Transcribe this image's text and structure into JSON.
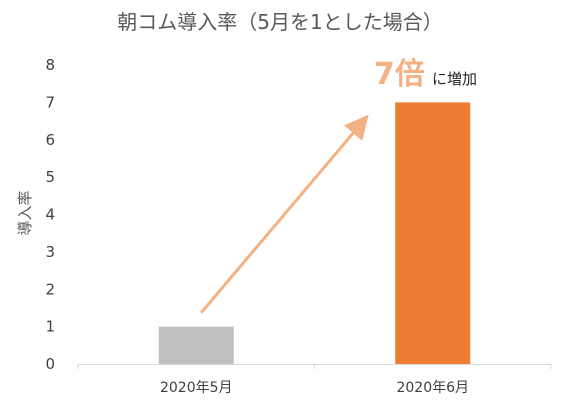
{
  "chart_data": {
    "type": "bar",
    "title": "朝コム導入率（5月を1とした場合）",
    "ylabel": "導入率",
    "xlabel": "",
    "categories": [
      "2020年5月",
      "2020年6月"
    ],
    "values": [
      1,
      7
    ],
    "ylim": [
      0,
      8
    ],
    "yticks": [
      "0",
      "1",
      "2",
      "3",
      "4",
      "5",
      "6",
      "7",
      "8"
    ],
    "bar_colors": [
      "#bfbfbf",
      "#ed7d31"
    ],
    "grid": false,
    "legend": "none",
    "annotation": {
      "value_text": "7倍",
      "suffix_text": "に増加",
      "value_color": "#f4b183",
      "arrow_color": "#f4b183"
    }
  }
}
